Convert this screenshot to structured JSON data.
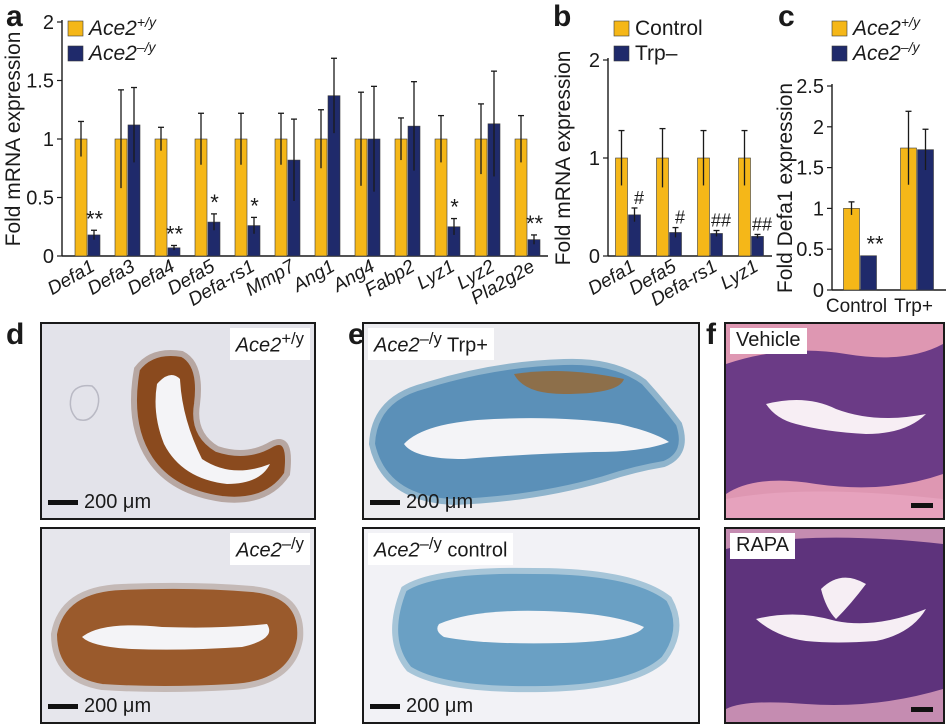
{
  "panels": {
    "a": "a",
    "b": "b",
    "c": "c",
    "d": "d",
    "e": "e",
    "f": "f"
  },
  "colors": {
    "series1": "#f5b718",
    "series2": "#1f2a6b",
    "axis": "#1a1a1a"
  },
  "chart_data": [
    {
      "id": "a",
      "type": "bar",
      "ylabel": "Fold mRNA expression",
      "ylim": [
        0,
        2
      ],
      "yticks": [
        "0",
        "0.5",
        "1",
        "1.5",
        "2"
      ],
      "ytick_values": [
        0,
        0.5,
        1,
        1.5,
        2
      ],
      "categories": [
        "Defa1",
        "Defa3",
        "Defa4",
        "Defa5",
        "Defa-rs1",
        "Mmp7",
        "Ang1",
        "Ang4",
        "Fabp2",
        "Lyz1",
        "Lyz2",
        "Pla2g2e"
      ],
      "series": [
        {
          "legend_base": "Ace2",
          "legend_sup": "+/y",
          "values": [
            1,
            1,
            1,
            1,
            1,
            1,
            1,
            1,
            1,
            1,
            1,
            1
          ],
          "errors": [
            0.15,
            0.42,
            0.1,
            0.22,
            0.22,
            0.22,
            0.25,
            0.4,
            0.18,
            0.2,
            0.3,
            0.2
          ]
        },
        {
          "legend_base": "Ace2",
          "legend_sup": "–/y",
          "values": [
            0.18,
            1.12,
            0.07,
            0.29,
            0.26,
            0.82,
            1.37,
            1,
            1.11,
            0.25,
            1.13,
            0.14
          ],
          "errors": [
            0.04,
            0.32,
            0.02,
            0.07,
            0.07,
            0.35,
            0.32,
            0.45,
            0.38,
            0.07,
            0.45,
            0.04
          ]
        }
      ],
      "annotations": [
        "**",
        "",
        "**",
        "*",
        "*",
        "",
        "",
        "",
        "",
        "*",
        "",
        "**"
      ],
      "grid": false,
      "legend_position": "top-left"
    },
    {
      "id": "b",
      "type": "bar",
      "ylabel": "Fold mRNA expression",
      "ylim": [
        0,
        2
      ],
      "yticks": [
        "0",
        "1",
        "2"
      ],
      "ytick_values": [
        0,
        1,
        2
      ],
      "categories": [
        "Defa1",
        "Defa5",
        "Defa-rs1",
        "Lyz1"
      ],
      "series": [
        {
          "legend": "Control",
          "values": [
            1,
            1,
            1,
            1
          ],
          "errors": [
            0.28,
            0.3,
            0.28,
            0.28
          ]
        },
        {
          "legend": "Trp–",
          "values": [
            0.42,
            0.24,
            0.23,
            0.2
          ],
          "errors": [
            0.07,
            0.05,
            0.03,
            0.02
          ]
        }
      ],
      "annotations": [
        "#",
        "#",
        "##",
        "##"
      ],
      "grid": false,
      "legend_position": "top-left"
    },
    {
      "id": "c",
      "type": "bar",
      "ylabel": "Fold Defa1 expression",
      "ylim": [
        0,
        2.5
      ],
      "yticks": [
        "0",
        "0.5",
        "1",
        "1.5",
        "2",
        "2.5"
      ],
      "ytick_values": [
        0,
        0.5,
        1,
        1.5,
        2,
        2.5
      ],
      "categories": [
        "Control",
        "Trp+"
      ],
      "series": [
        {
          "legend_base": "Ace2",
          "legend_sup": "+/y",
          "values": [
            1,
            1.74
          ],
          "errors": [
            0.08,
            0.45
          ]
        },
        {
          "legend_base": "Ace2",
          "legend_sup": "–/y",
          "values": [
            0.42,
            1.72
          ],
          "errors": [
            0,
            0.25
          ]
        }
      ],
      "annotations": [
        "**",
        ""
      ],
      "grid": false,
      "legend_position": "top-left"
    }
  ],
  "micrographs": {
    "d_top": {
      "label_base": "Ace2",
      "label_sup": "+/y",
      "scale": "200 μm"
    },
    "d_bottom": {
      "label_base": "Ace2",
      "label_sup": "–/y",
      "scale": "200 μm"
    },
    "e_top": {
      "label_base": "Ace2",
      "label_sup": "–/y",
      "label_rest": " Trp+",
      "scale": "200 μm"
    },
    "e_bottom": {
      "label_base": "Ace2",
      "label_sup": "–/y",
      "label_rest": " control",
      "scale": "200 μm"
    },
    "f_top": {
      "label": "Vehicle"
    },
    "f_bottom": {
      "label": "RAPA"
    }
  }
}
